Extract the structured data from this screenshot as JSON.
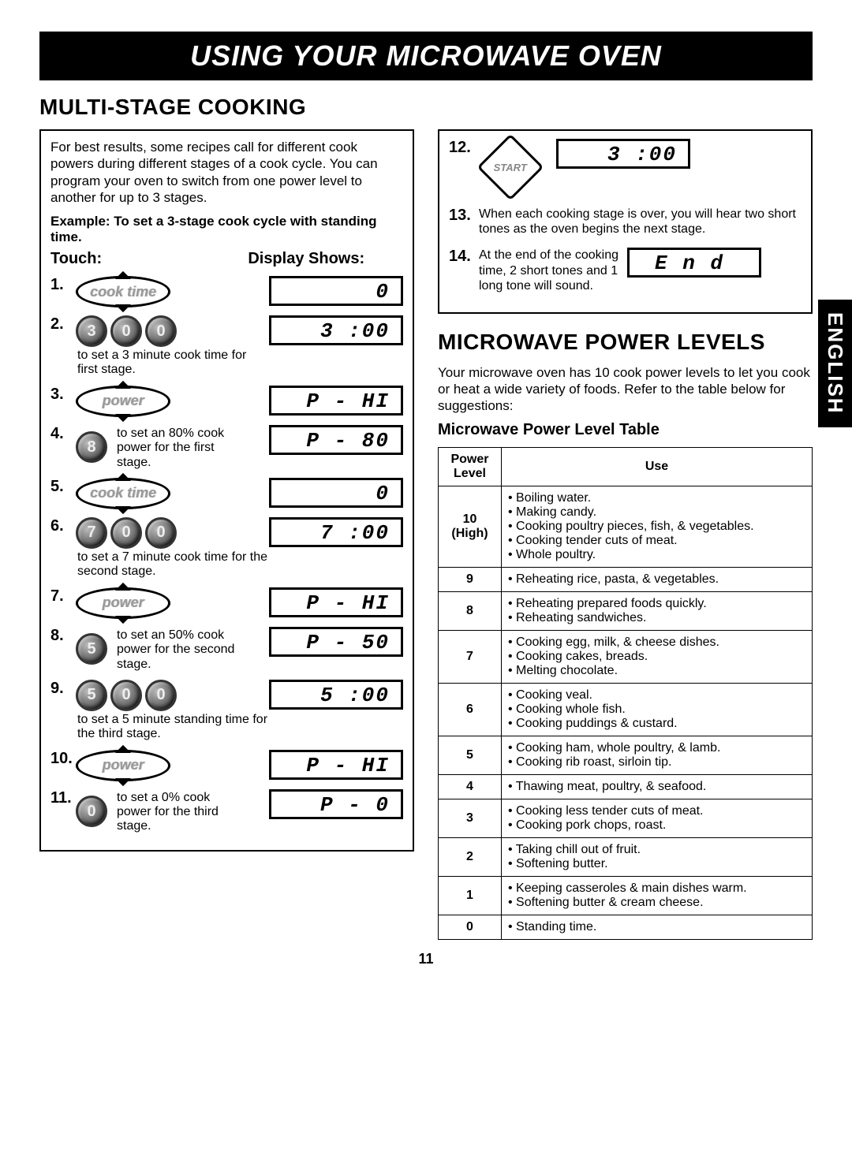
{
  "banner": "USING YOUR MICROWAVE OVEN",
  "side_tab": "ENGLISH",
  "page_number": "11",
  "section1": {
    "title": "MULTI-STAGE COOKING",
    "intro": "For best results, some recipes call for different cook powers during different stages of a cook cycle. You can program your oven to switch from one power level to another for up to 3 stages.",
    "example": "Example: To set a 3-stage cook cycle with standing time.",
    "touch_header": "Touch:",
    "display_header": "Display Shows:",
    "steps": [
      {
        "n": "1.",
        "type": "oval",
        "label": "cook time",
        "display": "0"
      },
      {
        "n": "2.",
        "type": "digits",
        "digits": [
          "3",
          "0",
          "0"
        ],
        "note": "to set a 3 minute cook time for first stage.",
        "display": "3 :00"
      },
      {
        "n": "3.",
        "type": "oval",
        "label": "power",
        "display": "P - HI"
      },
      {
        "n": "4.",
        "type": "digit",
        "digit": "8",
        "note": "to set an 80% cook power for the first stage.",
        "display": "P - 80"
      },
      {
        "n": "5.",
        "type": "oval",
        "label": "cook time",
        "display": "0"
      },
      {
        "n": "6.",
        "type": "digits",
        "digits": [
          "7",
          "0",
          "0"
        ],
        "note": "to set a 7 minute cook time for the second stage.",
        "display": "7 :00"
      },
      {
        "n": "7.",
        "type": "oval",
        "label": "power",
        "display": "P - HI"
      },
      {
        "n": "8.",
        "type": "digit",
        "digit": "5",
        "note": "to set an 50% cook power for the second stage.",
        "display": "P - 50"
      },
      {
        "n": "9.",
        "type": "digits",
        "digits": [
          "5",
          "0",
          "0"
        ],
        "note": "to set a 5 minute standing time for the third stage.",
        "display": "5 :00"
      },
      {
        "n": "10.",
        "type": "oval",
        "label": "power",
        "display": "P - HI"
      },
      {
        "n": "11.",
        "type": "digit",
        "digit": "0",
        "note": "to set a 0% cook power for the third stage.",
        "display": "P - 0"
      }
    ],
    "right_steps": {
      "s12": {
        "n": "12.",
        "label": "START",
        "display": "3 :00"
      },
      "s13": {
        "n": "13.",
        "text": "When each cooking stage is over, you will hear two short tones as the oven begins the next stage."
      },
      "s14": {
        "n": "14.",
        "text": "At the end of the cooking time, 2 short tones and 1 long tone will sound.",
        "display": "E n d"
      }
    }
  },
  "section2": {
    "title": "MICROWAVE POWER LEVELS",
    "intro": "Your microwave oven has 10 cook power levels to let you cook or heat a wide variety of foods. Refer to the table below for suggestions:",
    "subheading": "Microwave Power Level Table",
    "headers": {
      "level": "Power Level",
      "use": "Use"
    },
    "rows": [
      {
        "level": "10\n(High)",
        "uses": [
          "Boiling water.",
          "Making candy.",
          "Cooking poultry pieces, fish, & vegetables.",
          "Cooking tender cuts of meat.",
          "Whole poultry."
        ],
        "solid": true
      },
      {
        "level": "9",
        "uses": [
          "Reheating rice, pasta, & vegetables."
        ]
      },
      {
        "level": "8",
        "uses": [
          "Reheating prepared foods quickly.",
          "Reheating sandwiches."
        ]
      },
      {
        "level": "7",
        "uses": [
          "Cooking egg, milk, & cheese dishes.",
          "Cooking cakes, breads.",
          "Melting chocolate."
        ]
      },
      {
        "level": "6",
        "uses": [
          "Cooking veal.",
          "Cooking whole fish.",
          "Cooking puddings & custard."
        ]
      },
      {
        "level": "5",
        "uses": [
          "Cooking ham, whole poultry, & lamb.",
          "Cooking rib roast, sirloin tip."
        ]
      },
      {
        "level": "4",
        "uses": [
          "Thawing meat, poultry, & seafood."
        ]
      },
      {
        "level": "3",
        "uses": [
          "Cooking less tender cuts of meat.",
          "Cooking pork chops, roast."
        ]
      },
      {
        "level": "2",
        "uses": [
          "Taking chill out of fruit.",
          "Softening butter."
        ]
      },
      {
        "level": "1",
        "uses": [
          "Keeping casseroles & main dishes warm.",
          "Softening butter & cream cheese."
        ]
      },
      {
        "level": "0",
        "uses": [
          "Standing time."
        ]
      }
    ]
  }
}
